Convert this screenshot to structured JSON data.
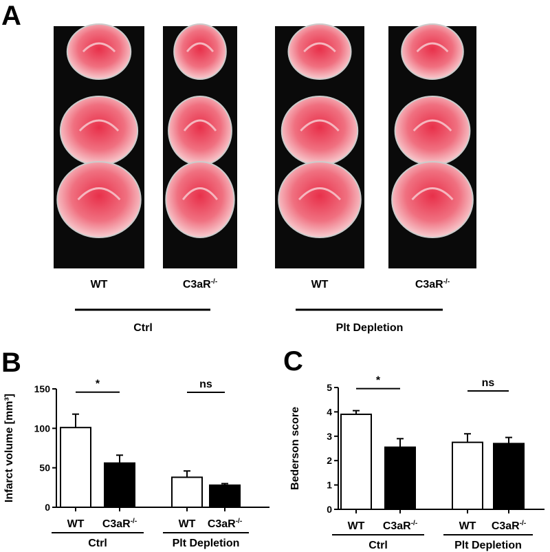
{
  "panel_a": {
    "label": "A",
    "columns": [
      {
        "text": "WT"
      },
      {
        "text": "C3aR",
        "sup": "-/-"
      },
      {
        "text": "WT"
      },
      {
        "text": "C3aR",
        "sup": "-/-"
      }
    ],
    "groups": [
      "Ctrl",
      "Plt Depletion"
    ]
  },
  "chart_data": [
    {
      "type": "bar",
      "panel_label": "B",
      "ylabel": "Infarct volume [mm³]",
      "categories": [
        {
          "text": "WT"
        },
        {
          "text": "C3aR",
          "sup": "-/-"
        },
        {
          "text": "WT"
        },
        {
          "text": "C3aR",
          "sup": "-/-"
        }
      ],
      "groups": [
        "Ctrl",
        "Plt Depletion"
      ],
      "values": [
        101,
        56,
        38,
        28
      ],
      "errors": [
        17,
        10,
        8,
        2
      ],
      "colors": [
        "#ffffff",
        "#000000",
        "#ffffff",
        "#000000"
      ],
      "significance": [
        "*",
        "ns"
      ],
      "ylim": [
        0,
        150
      ],
      "yticks": [
        0,
        50,
        100,
        150
      ]
    },
    {
      "type": "bar",
      "panel_label": "C",
      "ylabel": "Bederson  score",
      "categories": [
        {
          "text": "WT"
        },
        {
          "text": "C3aR",
          "sup": "-/-"
        },
        {
          "text": "WT"
        },
        {
          "text": "C3aR",
          "sup": "-/-"
        }
      ],
      "groups": [
        "Ctrl",
        "Plt Depletion"
      ],
      "values": [
        3.9,
        2.55,
        2.75,
        2.7
      ],
      "errors": [
        0.15,
        0.35,
        0.35,
        0.25
      ],
      "colors": [
        "#ffffff",
        "#000000",
        "#ffffff",
        "#000000"
      ],
      "significance": [
        "*",
        "ns"
      ],
      "ylim": [
        0,
        5
      ],
      "yticks": [
        0,
        1,
        2,
        3,
        4,
        5
      ]
    }
  ]
}
